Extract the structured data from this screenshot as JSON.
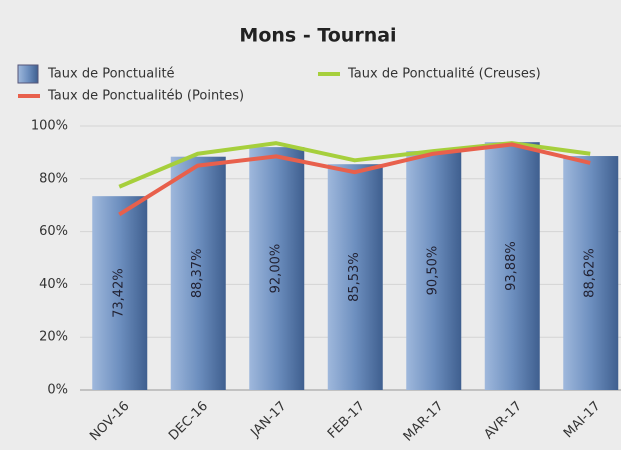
{
  "chart_data": {
    "type": "bar",
    "title": "Mons - Tournai",
    "categories": [
      "NOV-16",
      "DEC-16",
      "JAN-17",
      "FEB-17",
      "MAR-17",
      "AVR-17",
      "MAI-17"
    ],
    "series": [
      {
        "name": "Taux de Ponctualité",
        "type": "bar",
        "color": "#6d8fbf",
        "values": [
          73.42,
          88.37,
          92.0,
          85.53,
          90.5,
          93.88,
          88.62
        ],
        "value_labels": [
          "73,42%",
          "88,37%",
          "92,00%",
          "85,53%",
          "90,50%",
          "93,88%",
          "88,62%"
        ]
      },
      {
        "name": "Taux de Ponctualité (Creuses)",
        "type": "line",
        "color": "#a6cf3c",
        "values": [
          77,
          89.5,
          93.5,
          87,
          90.5,
          93.5,
          89.5
        ]
      },
      {
        "name": "Taux de Ponctualitéb (Pointes)",
        "type": "line",
        "color": "#e8604c",
        "values": [
          66.5,
          85,
          88.5,
          82.5,
          89.5,
          93,
          86
        ]
      }
    ],
    "ylim": [
      0,
      100
    ],
    "yticks": [
      {
        "value": 0,
        "label": "0%"
      },
      {
        "value": 20,
        "label": "20%"
      },
      {
        "value": 40,
        "label": "40%"
      },
      {
        "value": 60,
        "label": "60%"
      },
      {
        "value": 80,
        "label": "80%"
      },
      {
        "value": 100,
        "label": "100%"
      }
    ],
    "grid": true
  }
}
